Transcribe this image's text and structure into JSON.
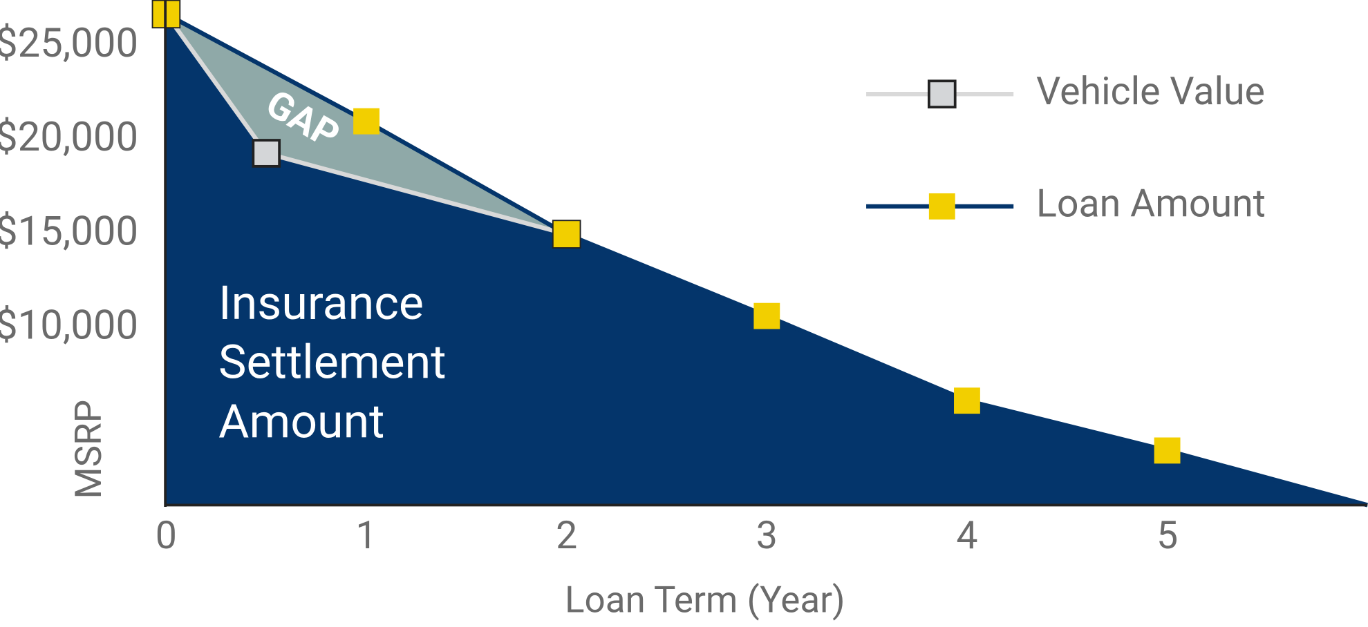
{
  "chart_data": {
    "type": "area",
    "x_label": "Loan Term (Year)",
    "y_label": "MSRP",
    "xlim": [
      0,
      6
    ],
    "ylim": [
      600,
      27400
    ],
    "xticks": [
      0,
      1,
      2,
      3,
      4,
      5
    ],
    "yticks": [
      {
        "value": 10000,
        "label": "$10,000"
      },
      {
        "value": 15000,
        "label": "$15,000"
      },
      {
        "value": 20000,
        "label": "$20,000"
      },
      {
        "value": 25000,
        "label": "$25,000"
      }
    ],
    "legend": "top right",
    "series": [
      {
        "name": "Vehicle Value",
        "color": "#d9d9d9",
        "marker_color": "#d4d6d8",
        "x": [
          0,
          0.5,
          2
        ],
        "values": [
          26700,
          19300,
          15000
        ]
      },
      {
        "name": "Loan Amount",
        "color": "#04356b",
        "marker_color": "#f2cf00",
        "x": [
          0,
          1,
          2,
          3,
          4,
          5
        ],
        "values": [
          26700,
          21000,
          15000,
          10650,
          6150,
          3500
        ]
      }
    ],
    "gap_label": "GAP",
    "gap_color": "#8fa9a8",
    "area_label": [
      "Insurance",
      "Settlement",
      "Amount"
    ]
  }
}
